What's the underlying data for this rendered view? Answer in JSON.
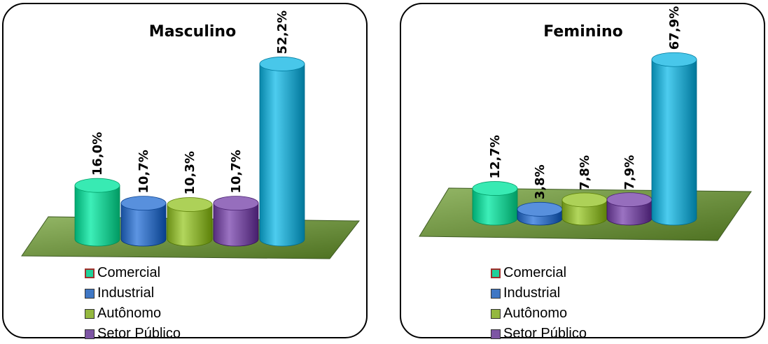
{
  "chart_data": [
    {
      "type": "bar",
      "title": "Masculino",
      "categories": [
        "Comercial",
        "Industrial",
        "Autônomo",
        "Setor Público",
        ""
      ],
      "values": [
        16.0,
        10.7,
        10.3,
        10.7,
        52.2
      ],
      "labels": [
        "16,0%",
        "10,7%",
        "10,3%",
        "10,7%",
        "52,2%"
      ],
      "legend": [
        "Comercial",
        "Industrial",
        "Autônomo",
        "Setor Público"
      ],
      "legend_placement": "bottom-left",
      "ylim": [
        0,
        55
      ],
      "grid": false
    },
    {
      "type": "bar",
      "title": "Feminino",
      "categories": [
        "Comercial",
        "Industrial",
        "Autônomo",
        "Setor Público",
        ""
      ],
      "values": [
        12.7,
        3.8,
        7.8,
        7.9,
        67.9
      ],
      "labels": [
        "12,7%",
        "3,8%",
        "7,8%",
        "7,9%",
        "67,9%"
      ],
      "legend": [
        "Comercial",
        "Industrial",
        "Autônomo",
        "Setor Público"
      ],
      "legend_placement": "bottom-left",
      "ylim": [
        0,
        70
      ],
      "grid": false
    }
  ],
  "colors": {
    "series": [
      "#1fd19a",
      "#3f77c4",
      "#94b83f",
      "#7d55a4",
      "#2faed1"
    ],
    "floor": "#6b8e3e"
  }
}
